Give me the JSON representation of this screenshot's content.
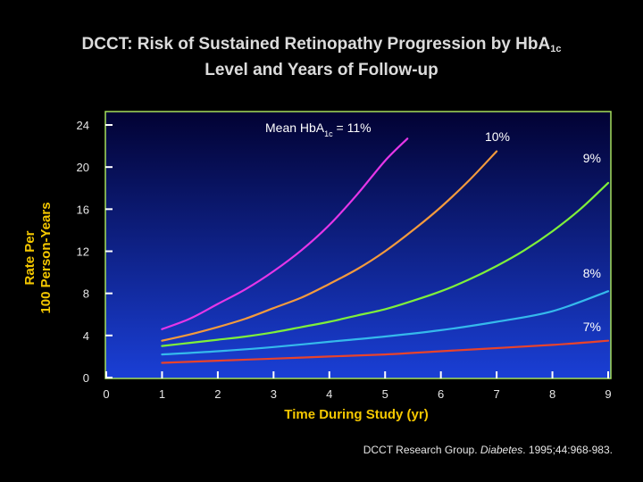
{
  "title": {
    "line1_main": "DCCT: Risk of Sustained Retinopathy Progression by HbA",
    "line1_sub": "1c",
    "line2": "Level and Years of Follow-up"
  },
  "citation": {
    "prefix": "DCCT Research Group. ",
    "journal": "Diabetes",
    "suffix": ". 1995;44:968-983."
  },
  "colors": {
    "background_top": "#020233",
    "background_bottom": "#1a3fd6",
    "axis": "#a6e05a",
    "label_yellow": "#f5c800"
  },
  "chart_data": {
    "type": "line",
    "xlabel": "Time During Study (yr)",
    "ylabel_line1": "Rate Per",
    "ylabel_line2": "100 Person-Years",
    "xlim": [
      0,
      9
    ],
    "ylim": [
      0,
      24
    ],
    "x_ticks": [
      "0",
      "1",
      "2",
      "3",
      "4",
      "5",
      "6",
      "7",
      "8",
      "9"
    ],
    "y_ticks": [
      "0",
      "4",
      "8",
      "12",
      "16",
      "20",
      "24"
    ],
    "grid": false,
    "legend": "inline labels",
    "series_label_prefix": "Mean HbA",
    "series_label_prefix_sub": "1c",
    "series_label_prefix_suffix": " = ",
    "series": [
      {
        "name": "11%",
        "color": "#e536e8",
        "x": [
          1,
          1.5,
          2,
          2.5,
          3,
          3.5,
          4,
          4.5,
          5,
          5.4
        ],
        "values": [
          4.6,
          5.6,
          7.0,
          8.4,
          10.1,
          12.1,
          14.5,
          17.4,
          20.6,
          22.7
        ]
      },
      {
        "name": "10%",
        "color": "#f39a3d",
        "x": [
          1,
          1.5,
          2,
          2.5,
          3,
          3.5,
          4,
          4.5,
          5,
          5.5,
          6,
          6.5,
          7
        ],
        "values": [
          3.5,
          4.1,
          4.8,
          5.6,
          6.6,
          7.6,
          8.9,
          10.3,
          12.0,
          14.0,
          16.2,
          18.7,
          21.5
        ]
      },
      {
        "name": "9%",
        "color": "#7ff03a",
        "x": [
          1,
          1.5,
          2,
          2.5,
          3,
          3.5,
          4,
          4.5,
          5,
          5.5,
          6,
          6.5,
          7,
          7.5,
          8,
          8.5,
          9
        ],
        "values": [
          3.0,
          3.3,
          3.6,
          3.9,
          4.3,
          4.8,
          5.3,
          5.9,
          6.5,
          7.3,
          8.2,
          9.3,
          10.6,
          12.1,
          13.9,
          16.0,
          18.5
        ]
      },
      {
        "name": "8%",
        "color": "#35b9ec",
        "x": [
          1,
          2,
          3,
          4,
          5,
          6,
          7,
          8,
          9
        ],
        "values": [
          2.2,
          2.5,
          2.9,
          3.4,
          3.9,
          4.5,
          5.3,
          6.3,
          8.2
        ]
      },
      {
        "name": "7%",
        "color": "#e8432c",
        "x": [
          1,
          2,
          3,
          4,
          5,
          6,
          7,
          8,
          9
        ],
        "values": [
          1.4,
          1.6,
          1.8,
          2.0,
          2.2,
          2.5,
          2.8,
          3.1,
          3.5
        ]
      }
    ]
  }
}
